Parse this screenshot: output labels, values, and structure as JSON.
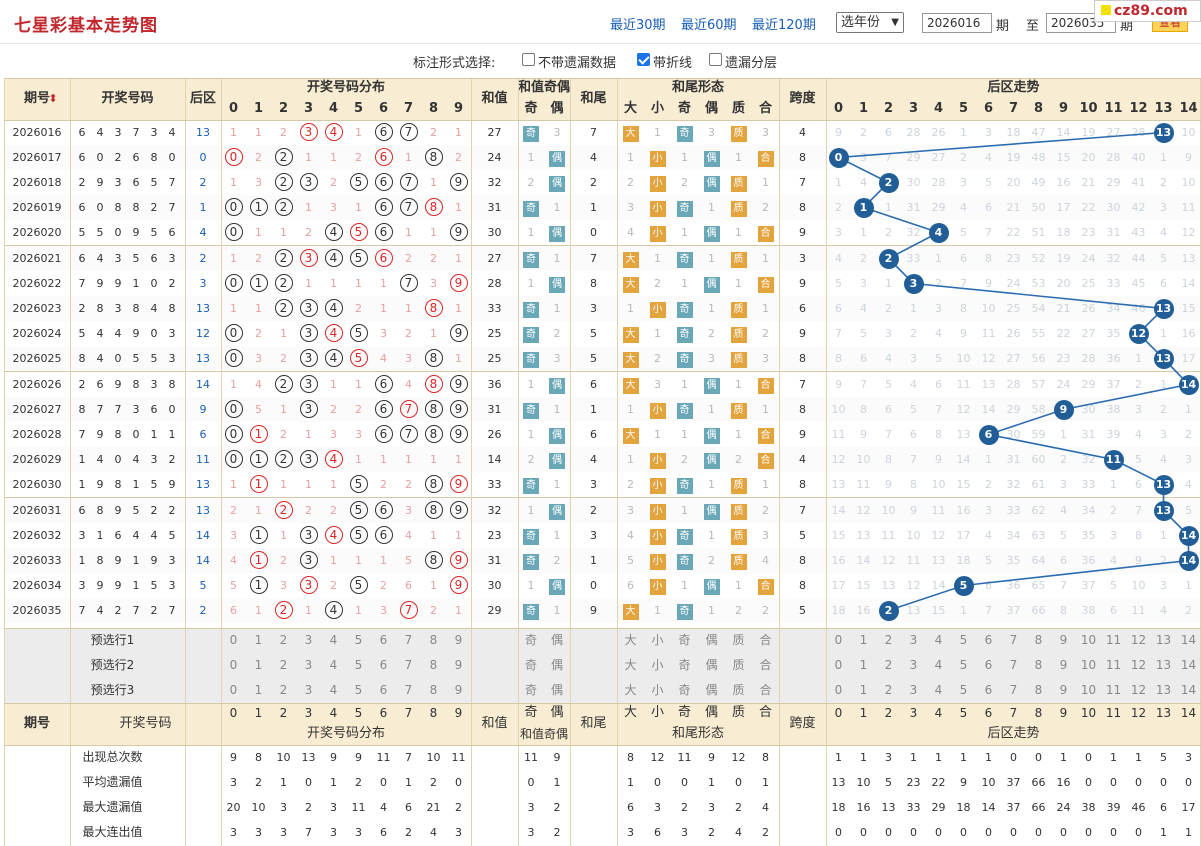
{
  "page": {
    "title": "七星彩基本走势图"
  },
  "logo": "cz89.com",
  "quick_links": [
    "最近30期",
    "最近60期",
    "最近120期"
  ],
  "year_select": "选年份",
  "range": {
    "from": "2026016",
    "label_mid": "期",
    "to_label": "至",
    "to": "2026035",
    "label_end": "期",
    "query": "查看"
  },
  "options": {
    "label": "标注形式选择:",
    "items": [
      {
        "label": "不带遗漏数据",
        "checked": false
      },
      {
        "label": "带折线",
        "checked": true
      },
      {
        "label": "遗漏分层",
        "checked": false
      }
    ]
  },
  "headers": {
    "issue": "期号",
    "numbers": "开奖号码",
    "back": "后区",
    "dist": "开奖号码分布",
    "sum": "和值",
    "sum_parity": "和值奇偶",
    "odd": "奇",
    "even": "偶",
    "tail": "和尾",
    "tail_form": "和尾形态",
    "big": "大",
    "small": "小",
    "prime": "质",
    "composite": "合",
    "span": "跨度",
    "back_trend": "后区走势"
  },
  "rows": [
    {
      "issue": "2026016",
      "nums": [
        6,
        4,
        3,
        7,
        3,
        4
      ],
      "back": 13,
      "dist": [
        1,
        1,
        2,
        "3",
        "4",
        1,
        "6",
        "7",
        2,
        1
      ],
      "sum": 27,
      "sp": [
        "奇",
        3
      ],
      "tail": 7,
      "tf": [
        "大",
        1,
        "奇",
        3,
        "质",
        3
      ],
      "span": 4,
      "bt": [
        9,
        2,
        6,
        28,
        26,
        1,
        3,
        18,
        47,
        14,
        19,
        27,
        28,
        13,
        10
      ]
    },
    {
      "issue": "2026017",
      "nums": [
        6,
        0,
        2,
        6,
        8,
        0
      ],
      "back": 0,
      "dist": [
        "0",
        2,
        "2",
        1,
        1,
        2,
        "6",
        1,
        "8",
        2
      ],
      "sum": 24,
      "sp": [
        1,
        "偶"
      ],
      "tail": 4,
      "tf": [
        1,
        "小",
        1,
        "偶",
        1,
        "合"
      ],
      "span": 8,
      "bt": [
        0,
        3,
        7,
        29,
        27,
        2,
        4,
        19,
        48,
        15,
        20,
        28,
        40,
        1,
        9
      ]
    },
    {
      "issue": "2026018",
      "nums": [
        2,
        9,
        3,
        6,
        5,
        7
      ],
      "back": 2,
      "dist": [
        1,
        3,
        "2",
        "3",
        2,
        "5",
        "6",
        "7",
        1,
        "9"
      ],
      "sum": 32,
      "sp": [
        2,
        "偶"
      ],
      "tail": 2,
      "tf": [
        2,
        "小",
        2,
        "偶",
        "质",
        1
      ],
      "span": 7,
      "bt": [
        1,
        4,
        2,
        30,
        28,
        3,
        5,
        20,
        49,
        16,
        21,
        29,
        41,
        2,
        10
      ]
    },
    {
      "issue": "2026019",
      "nums": [
        6,
        0,
        8,
        8,
        2,
        7
      ],
      "back": 1,
      "dist": [
        "0",
        "1",
        "2",
        1,
        3,
        1,
        "6",
        "7",
        "8",
        1
      ],
      "sum": 31,
      "sp": [
        "奇",
        1
      ],
      "tail": 1,
      "tf": [
        3,
        "小",
        "奇",
        1,
        "质",
        2
      ],
      "span": 8,
      "bt": [
        2,
        1,
        1,
        31,
        29,
        4,
        6,
        21,
        50,
        17,
        22,
        30,
        42,
        3,
        11
      ]
    },
    {
      "issue": "2026020",
      "nums": [
        5,
        5,
        0,
        9,
        5,
        6
      ],
      "back": 4,
      "dist": [
        "0",
        1,
        1,
        2,
        "4",
        "5",
        "6",
        1,
        1,
        "9"
      ],
      "sum": 30,
      "sp": [
        1,
        "偶"
      ],
      "tail": 0,
      "tf": [
        4,
        "小",
        1,
        "偶",
        1,
        "合"
      ],
      "span": 9,
      "bt": [
        3,
        1,
        2,
        32,
        4,
        5,
        7,
        22,
        51,
        18,
        23,
        31,
        43,
        4,
        12
      ]
    },
    {
      "issue": "2026021",
      "nums": [
        6,
        4,
        3,
        5,
        6,
        3
      ],
      "back": 2,
      "dist": [
        1,
        2,
        "2",
        "3",
        "4",
        "5",
        "6",
        2,
        2,
        1
      ],
      "sum": 27,
      "sp": [
        "奇",
        1
      ],
      "tail": 7,
      "tf": [
        "大",
        1,
        "奇",
        1,
        "质",
        1
      ],
      "span": 3,
      "bt": [
        4,
        2,
        2,
        33,
        1,
        6,
        8,
        23,
        52,
        19,
        24,
        32,
        44,
        5,
        13
      ]
    },
    {
      "issue": "2026022",
      "nums": [
        7,
        9,
        9,
        1,
        0,
        2
      ],
      "back": 3,
      "dist": [
        "0",
        "1",
        "2",
        1,
        1,
        1,
        1,
        "7",
        3,
        "9"
      ],
      "sum": 28,
      "sp": [
        1,
        "偶"
      ],
      "tail": 8,
      "tf": [
        "大",
        2,
        1,
        "偶",
        1,
        "合"
      ],
      "span": 9,
      "bt": [
        5,
        3,
        1,
        3,
        2,
        7,
        9,
        24,
        53,
        20,
        25,
        33,
        45,
        6,
        14
      ]
    },
    {
      "issue": "2026023",
      "nums": [
        2,
        8,
        3,
        8,
        4,
        8
      ],
      "back": 13,
      "dist": [
        1,
        1,
        "2",
        "3",
        "4",
        2,
        1,
        1,
        "8",
        1
      ],
      "sum": 33,
      "sp": [
        "奇",
        1
      ],
      "tail": 3,
      "tf": [
        1,
        "小",
        "奇",
        1,
        "质",
        1
      ],
      "span": 6,
      "bt": [
        6,
        4,
        2,
        1,
        3,
        8,
        10,
        25,
        54,
        21,
        26,
        34,
        46,
        13,
        15
      ]
    },
    {
      "issue": "2026024",
      "nums": [
        5,
        4,
        4,
        9,
        0,
        3
      ],
      "back": 12,
      "dist": [
        "0",
        2,
        1,
        "3",
        "4",
        "5",
        3,
        2,
        1,
        "9"
      ],
      "sum": 25,
      "sp": [
        "奇",
        2
      ],
      "tail": 5,
      "tf": [
        "大",
        1,
        "奇",
        2,
        "质",
        2
      ],
      "span": 9,
      "bt": [
        7,
        5,
        3,
        2,
        4,
        9,
        11,
        26,
        55,
        22,
        27,
        35,
        12,
        1,
        16
      ]
    },
    {
      "issue": "2026025",
      "nums": [
        8,
        4,
        0,
        5,
        5,
        3
      ],
      "back": 13,
      "dist": [
        "0",
        3,
        2,
        "3",
        "4",
        "5",
        4,
        3,
        "8",
        1
      ],
      "sum": 25,
      "sp": [
        "奇",
        3
      ],
      "tail": 5,
      "tf": [
        "大",
        2,
        "奇",
        3,
        "质",
        3
      ],
      "span": 8,
      "bt": [
        8,
        6,
        4,
        3,
        5,
        10,
        12,
        27,
        56,
        23,
        28,
        36,
        1,
        13,
        17
      ]
    },
    {
      "issue": "2026026",
      "nums": [
        2,
        6,
        9,
        8,
        3,
        8
      ],
      "back": 14,
      "dist": [
        1,
        4,
        "2",
        "3",
        1,
        1,
        "6",
        4,
        "8",
        "9"
      ],
      "sum": 36,
      "sp": [
        1,
        "偶"
      ],
      "tail": 6,
      "tf": [
        "大",
        3,
        1,
        "偶",
        1,
        "合"
      ],
      "span": 7,
      "bt": [
        9,
        7,
        5,
        4,
        6,
        11,
        13,
        28,
        57,
        24,
        29,
        37,
        2,
        1,
        14
      ]
    },
    {
      "issue": "2026027",
      "nums": [
        8,
        7,
        7,
        3,
        6,
        0
      ],
      "back": 9,
      "dist": [
        "0",
        5,
        1,
        "3",
        2,
        2,
        "6",
        "7",
        "8",
        "9"
      ],
      "sum": 31,
      "sp": [
        "奇",
        1
      ],
      "tail": 1,
      "tf": [
        1,
        "小",
        "奇",
        1,
        "质",
        1
      ],
      "span": 8,
      "bt": [
        10,
        8,
        6,
        5,
        7,
        12,
        14,
        29,
        58,
        9,
        30,
        38,
        3,
        2,
        1
      ]
    },
    {
      "issue": "2026028",
      "nums": [
        7,
        9,
        8,
        0,
        1,
        1
      ],
      "back": 6,
      "dist": [
        "0",
        "1",
        2,
        1,
        3,
        3,
        "6",
        "7",
        "8",
        "9"
      ],
      "sum": 26,
      "sp": [
        1,
        "偶"
      ],
      "tail": 6,
      "tf": [
        "大",
        1,
        1,
        "偶",
        1,
        "合"
      ],
      "span": 9,
      "bt": [
        11,
        9,
        7,
        6,
        8,
        13,
        6,
        30,
        59,
        1,
        31,
        39,
        4,
        3,
        2
      ]
    },
    {
      "issue": "2026029",
      "nums": [
        1,
        4,
        0,
        4,
        3,
        2
      ],
      "back": 11,
      "dist": [
        "0",
        "1",
        "2",
        "3",
        "4",
        1,
        1,
        1,
        1,
        1
      ],
      "sum": 14,
      "sp": [
        2,
        "偶"
      ],
      "tail": 4,
      "tf": [
        1,
        "小",
        2,
        "偶",
        2,
        "合"
      ],
      "span": 4,
      "bt": [
        12,
        10,
        8,
        7,
        9,
        14,
        1,
        31,
        60,
        2,
        32,
        11,
        5,
        4,
        3
      ]
    },
    {
      "issue": "2026030",
      "nums": [
        1,
        9,
        8,
        1,
        5,
        9
      ],
      "back": 13,
      "dist": [
        1,
        "1",
        1,
        1,
        1,
        "5",
        2,
        2,
        "8",
        "9"
      ],
      "sum": 33,
      "sp": [
        "奇",
        1
      ],
      "tail": 3,
      "tf": [
        2,
        "小",
        "奇",
        1,
        "质",
        1
      ],
      "span": 8,
      "bt": [
        13,
        11,
        9,
        8,
        10,
        15,
        2,
        32,
        61,
        3,
        33,
        1,
        6,
        13,
        4
      ]
    },
    {
      "issue": "2026031",
      "nums": [
        6,
        8,
        9,
        5,
        2,
        2
      ],
      "back": 13,
      "dist": [
        2,
        1,
        "2",
        2,
        2,
        "5",
        "6",
        3,
        "8",
        "9"
      ],
      "sum": 32,
      "sp": [
        1,
        "偶"
      ],
      "tail": 2,
      "tf": [
        3,
        "小",
        1,
        "偶",
        "质",
        2
      ],
      "span": 7,
      "bt": [
        14,
        12,
        10,
        9,
        11,
        16,
        3,
        33,
        62,
        4,
        34,
        2,
        7,
        13,
        5
      ]
    },
    {
      "issue": "2026032",
      "nums": [
        3,
        1,
        6,
        4,
        4,
        5
      ],
      "back": 14,
      "dist": [
        3,
        "1",
        1,
        "3",
        "4",
        "5",
        "6",
        4,
        1,
        1
      ],
      "sum": 23,
      "sp": [
        "奇",
        1
      ],
      "tail": 3,
      "tf": [
        4,
        "小",
        "奇",
        1,
        "质",
        3
      ],
      "span": 5,
      "bt": [
        15,
        13,
        11,
        10,
        12,
        17,
        4,
        34,
        63,
        5,
        35,
        3,
        8,
        1,
        14
      ]
    },
    {
      "issue": "2026033",
      "nums": [
        1,
        8,
        9,
        1,
        9,
        3
      ],
      "back": 14,
      "dist": [
        4,
        "1",
        2,
        "3",
        1,
        1,
        1,
        5,
        "8",
        "9"
      ],
      "sum": 31,
      "sp": [
        "奇",
        2
      ],
      "tail": 1,
      "tf": [
        5,
        "小",
        "奇",
        2,
        "质",
        4
      ],
      "span": 8,
      "bt": [
        16,
        14,
        12,
        11,
        13,
        18,
        5,
        35,
        64,
        6,
        36,
        4,
        9,
        2,
        14
      ]
    },
    {
      "issue": "2026034",
      "nums": [
        3,
        9,
        9,
        1,
        5,
        3
      ],
      "back": 5,
      "dist": [
        5,
        "1",
        3,
        "3",
        2,
        "5",
        2,
        6,
        1,
        "9"
      ],
      "sum": 30,
      "sp": [
        1,
        "偶"
      ],
      "tail": 0,
      "tf": [
        6,
        "小",
        1,
        "偶",
        1,
        "合"
      ],
      "span": 8,
      "bt": [
        17,
        15,
        13,
        12,
        14,
        5,
        6,
        36,
        65,
        7,
        37,
        5,
        10,
        3,
        1
      ]
    },
    {
      "issue": "2026035",
      "nums": [
        7,
        4,
        2,
        7,
        2,
        7
      ],
      "back": 2,
      "dist": [
        6,
        1,
        "2",
        1,
        "4",
        1,
        3,
        "7",
        2,
        1
      ],
      "sum": 29,
      "sp": [
        "奇",
        1
      ],
      "tail": 9,
      "tf": [
        "大",
        1,
        "奇",
        1,
        2,
        2
      ],
      "span": 5,
      "bt": [
        18,
        16,
        2,
        13,
        15,
        1,
        7,
        37,
        66,
        8,
        38,
        6,
        11,
        4,
        2
      ]
    }
  ],
  "preselect": [
    "预选行1",
    "预选行2",
    "预选行3"
  ],
  "digits": [
    "0",
    "1",
    "2",
    "3",
    "4",
    "5",
    "6",
    "7",
    "8",
    "9"
  ],
  "back_digits": [
    "0",
    "1",
    "2",
    "3",
    "4",
    "5",
    "6",
    "7",
    "8",
    "9",
    "10",
    "11",
    "12",
    "13",
    "14"
  ],
  "stats": [
    {
      "label": "出现总次数",
      "dist": [
        9,
        8,
        10,
        13,
        9,
        9,
        11,
        7,
        10,
        11
      ],
      "sp": [
        11,
        9
      ],
      "tf": [
        8,
        12,
        11,
        9,
        12,
        8
      ],
      "bt": [
        1,
        1,
        3,
        1,
        1,
        1,
        1,
        0,
        0,
        1,
        0,
        1,
        1,
        5,
        3
      ]
    },
    {
      "label": "平均遗漏值",
      "dist": [
        3,
        2,
        1,
        0,
        1,
        2,
        0,
        1,
        2,
        0
      ],
      "sp": [
        0,
        1
      ],
      "tf": [
        1,
        0,
        0,
        1,
        0,
        1
      ],
      "bt": [
        13,
        10,
        5,
        23,
        22,
        9,
        10,
        37,
        66,
        16,
        0,
        0,
        0,
        0,
        0
      ]
    },
    {
      "label": "最大遗漏值",
      "dist": [
        20,
        10,
        3,
        2,
        3,
        11,
        4,
        6,
        21,
        2
      ],
      "sp": [
        3,
        2
      ],
      "tf": [
        6,
        3,
        2,
        3,
        2,
        4
      ],
      "bt": [
        18,
        16,
        13,
        33,
        29,
        18,
        14,
        37,
        66,
        24,
        38,
        39,
        46,
        6,
        17
      ]
    },
    {
      "label": "最大连出值",
      "dist": [
        3,
        3,
        3,
        7,
        3,
        3,
        6,
        2,
        4,
        3
      ],
      "sp": [
        3,
        2
      ],
      "tf": [
        3,
        6,
        3,
        2,
        4,
        2
      ],
      "bt": [
        0,
        0,
        0,
        0,
        0,
        0,
        0,
        0,
        0,
        0,
        0,
        0,
        0,
        1,
        1
      ]
    }
  ],
  "colors": {
    "brand": "#c1272d",
    "link": "#1a5fb4",
    "header_bg": "#f8ecd2",
    "ball": "#215d96"
  }
}
